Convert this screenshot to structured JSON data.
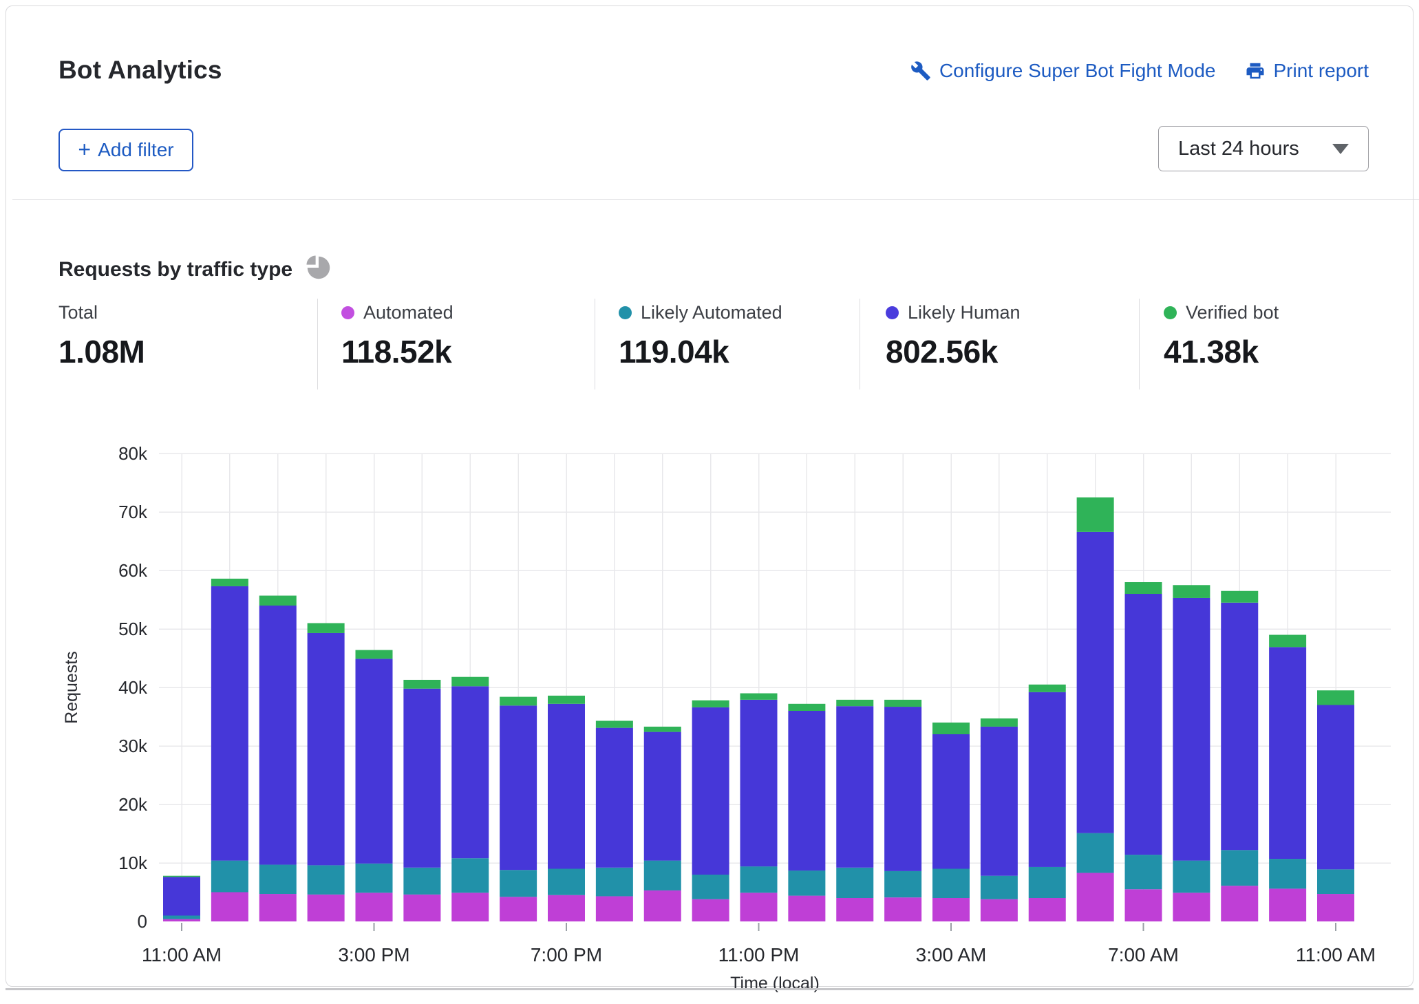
{
  "card": {
    "title": "Bot Analytics",
    "configure_link": "Configure Super Bot Fight Mode",
    "print_link": "Print report",
    "add_filter": {
      "plus": "+",
      "label": "Add filter"
    },
    "time_range": {
      "value": "Last 24 hours"
    }
  },
  "section": {
    "title": "Requests by traffic type"
  },
  "stats": [
    {
      "label": "Total",
      "value": "1.08M",
      "dot": null
    },
    {
      "label": "Automated",
      "value": "118.52k",
      "dot": "#c24fe0"
    },
    {
      "label": "Likely Automated",
      "value": "119.04k",
      "dot": "#2191a9"
    },
    {
      "label": "Likely Human",
      "value": "802.56k",
      "dot": "#4a3cdd"
    },
    {
      "label": "Verified bot",
      "value": "41.38k",
      "dot": "#2fb358"
    }
  ],
  "chart_data": {
    "type": "bar",
    "stacked": true,
    "title": "Requests by traffic type",
    "xlabel": "Time (local)",
    "ylabel": "Requests",
    "unit": "thousands of requests per hour",
    "ylim_k": [
      0,
      80
    ],
    "y_ticks": [
      "0",
      "10k",
      "20k",
      "30k",
      "40k",
      "50k",
      "60k",
      "70k",
      "80k"
    ],
    "x_tick_labels": [
      "11:00 AM",
      "3:00 PM",
      "7:00 PM",
      "11:00 PM",
      "3:00 AM",
      "7:00 AM",
      "11:00 AM"
    ],
    "x_tick_indices": [
      0,
      4,
      8,
      12,
      16,
      20,
      24
    ],
    "n_bars": 25,
    "grid": true,
    "legend_position": "top-stats-row",
    "series": [
      {
        "name": "Automated",
        "color": "#bf3fd6",
        "values": [
          0.4,
          5.0,
          4.7,
          4.6,
          4.9,
          4.6,
          4.9,
          4.2,
          4.5,
          4.3,
          5.3,
          3.8,
          4.9,
          4.4,
          4.0,
          4.1,
          4.0,
          3.8,
          4.0,
          8.3,
          5.5,
          4.9,
          6.1,
          5.6,
          4.7
        ]
      },
      {
        "name": "Likely Automated",
        "color": "#2191a9",
        "values": [
          0.6,
          5.4,
          5.0,
          5.0,
          5.0,
          4.6,
          5.9,
          4.6,
          4.5,
          4.9,
          5.1,
          4.2,
          4.5,
          4.3,
          5.2,
          4.5,
          5.0,
          4.0,
          5.3,
          6.8,
          5.9,
          5.5,
          6.1,
          5.1,
          4.2
        ]
      },
      {
        "name": "Likely Human",
        "color": "#4637d8",
        "values": [
          6.6,
          46.9,
          44.3,
          39.7,
          35.0,
          30.6,
          29.4,
          28.1,
          28.2,
          23.9,
          22.0,
          28.6,
          28.5,
          27.3,
          27.6,
          28.1,
          23.0,
          25.5,
          29.9,
          51.5,
          44.6,
          44.9,
          42.3,
          36.2,
          28.1
        ]
      },
      {
        "name": "Verified bot",
        "color": "#2fb358",
        "values": [
          0.2,
          1.3,
          1.7,
          1.7,
          1.5,
          1.5,
          1.6,
          1.5,
          1.4,
          1.2,
          0.9,
          1.2,
          1.1,
          1.2,
          1.1,
          1.2,
          2.0,
          1.4,
          1.3,
          5.9,
          2.0,
          2.2,
          2.0,
          2.1,
          2.5
        ]
      }
    ],
    "colors": {
      "grid": "#e8e8eb",
      "tick_text": "#26282d",
      "axis_title": "#2b2d33"
    }
  }
}
